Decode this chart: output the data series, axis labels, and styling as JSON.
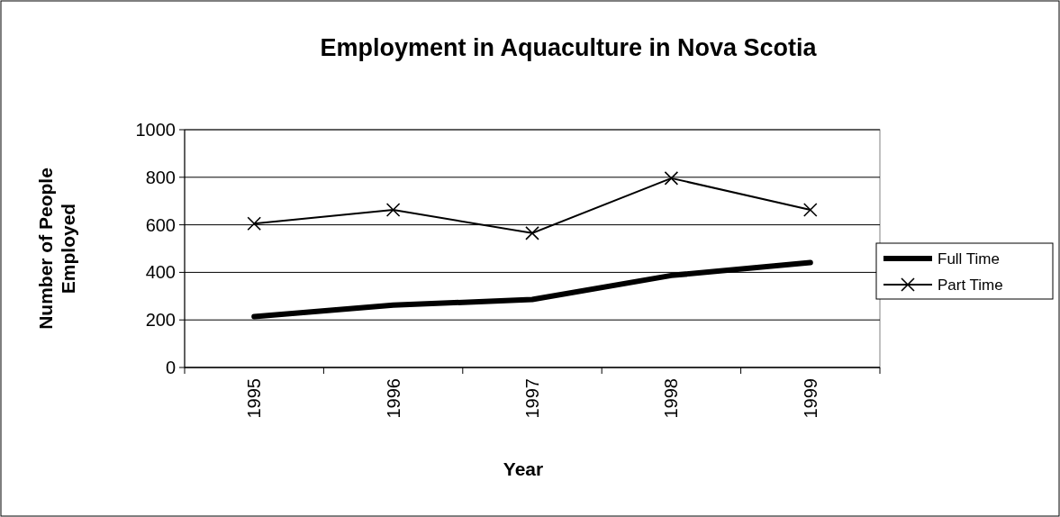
{
  "chart_data": {
    "type": "line",
    "title": "Employment in Aquaculture in Nova Scotia",
    "xlabel": "Year",
    "ylabel": "Number of People Employed",
    "categories": [
      "1995",
      "1996",
      "1997",
      "1998",
      "1999"
    ],
    "series": [
      {
        "name": "Full Time",
        "color": "#000000",
        "marker": "none",
        "values": [
          214,
          262,
          286,
          387,
          441
        ]
      },
      {
        "name": "Part Time",
        "color": "#000000",
        "marker": "cross",
        "values": [
          605,
          663,
          565,
          796,
          663
        ]
      }
    ],
    "ylim": [
      0,
      1000
    ],
    "yticks": [
      0,
      200,
      400,
      600,
      800,
      1000
    ],
    "grid": "y",
    "legend": "right",
    "line_style": "solid"
  }
}
